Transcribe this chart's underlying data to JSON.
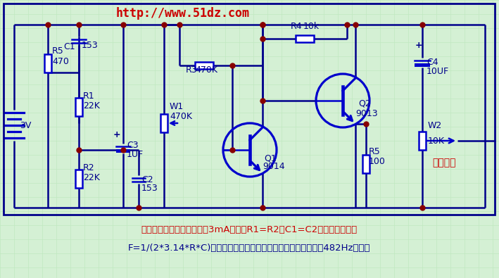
{
  "bg_color": "#d4f0d4",
  "grid_color": "#c0e8c0",
  "border_color": "#00008b",
  "component_color": "#0000cc",
  "wire_color": "#00008b",
  "node_color": "#880000",
  "title_color": "#cc0000",
  "text_color": "#00008b",
  "label_color": "#cc0000",
  "url_text": "http://www.51dz.com",
  "bottom_text1": "正弦波信号发生器，耗电仃3mA左右。R1=R2、C1=C2决定振荡频率。",
  "bottom_text2": "F=1/(2*3.14*R*C)，单位分别为赫兹、欧姆、法拉。本图频率在482Hz左右。"
}
